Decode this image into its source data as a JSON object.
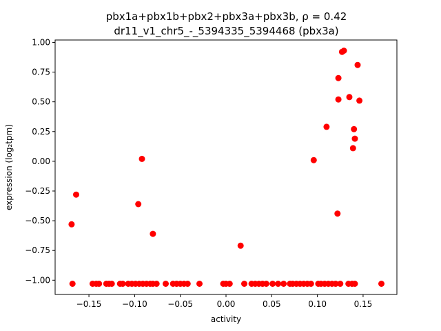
{
  "chart_data": {
    "type": "scatter",
    "title_line1": "pbx1a+pbx1b+pbx2+pbx3a+pbx3b, ρ = 0.42",
    "title_line2": "dr11_v1_chr5_-_5394335_5394468 (pbx3a)",
    "xlabel": "activity",
    "ylabel": "expression (log₂tpm)",
    "xlim": [
      -0.187,
      0.187
    ],
    "ylim": [
      -1.12,
      1.02
    ],
    "xticks": [
      -0.15,
      -0.1,
      -0.05,
      0.0,
      0.05,
      0.1,
      0.15
    ],
    "xtick_labels": [
      "−0.15",
      "−0.10",
      "−0.05",
      "0.00",
      "0.05",
      "0.10",
      "0.15"
    ],
    "yticks": [
      1.0,
      0.75,
      0.5,
      0.25,
      0.0,
      -0.25,
      -0.5,
      -0.75,
      -1.0
    ],
    "ytick_labels": [
      "1.00",
      "0.75",
      "0.50",
      "0.25",
      "0.00",
      "−0.25",
      "−0.50",
      "−0.75",
      "−1.00"
    ],
    "marker_color": "#ff0000",
    "grid": false,
    "series": [
      {
        "points": [
          [
            -0.169,
            -0.53
          ],
          [
            -0.164,
            -0.28
          ],
          [
            -0.096,
            -0.36
          ],
          [
            -0.092,
            0.02
          ],
          [
            -0.08,
            -0.61
          ],
          [
            0.016,
            -0.71
          ],
          [
            0.096,
            0.01
          ],
          [
            0.11,
            0.29
          ],
          [
            0.122,
            -0.44
          ],
          [
            0.123,
            0.7
          ],
          [
            0.123,
            0.52
          ],
          [
            0.127,
            0.92
          ],
          [
            0.129,
            0.93
          ],
          [
            0.135,
            0.54
          ],
          [
            0.139,
            0.11
          ],
          [
            0.14,
            0.27
          ],
          [
            0.141,
            0.19
          ],
          [
            0.144,
            0.81
          ],
          [
            0.146,
            0.51
          ],
          [
            -0.168,
            -1.03
          ],
          [
            -0.146,
            -1.03
          ],
          [
            -0.142,
            -1.03
          ],
          [
            -0.139,
            -1.03
          ],
          [
            -0.131,
            -1.03
          ],
          [
            -0.128,
            -1.03
          ],
          [
            -0.125,
            -1.03
          ],
          [
            -0.116,
            -1.03
          ],
          [
            -0.113,
            -1.03
          ],
          [
            -0.107,
            -1.03
          ],
          [
            -0.103,
            -1.03
          ],
          [
            -0.099,
            -1.03
          ],
          [
            -0.095,
            -1.03
          ],
          [
            -0.091,
            -1.03
          ],
          [
            -0.087,
            -1.03
          ],
          [
            -0.083,
            -1.03
          ],
          [
            -0.08,
            -1.03
          ],
          [
            -0.076,
            -1.03
          ],
          [
            -0.066,
            -1.03
          ],
          [
            -0.058,
            -1.03
          ],
          [
            -0.054,
            -1.03
          ],
          [
            -0.05,
            -1.03
          ],
          [
            -0.046,
            -1.03
          ],
          [
            -0.042,
            -1.03
          ],
          [
            -0.029,
            -1.03
          ],
          [
            -0.003,
            -1.03
          ],
          [
            0.0,
            -1.03
          ],
          [
            0.004,
            -1.03
          ],
          [
            0.02,
            -1.03
          ],
          [
            0.028,
            -1.03
          ],
          [
            0.032,
            -1.03
          ],
          [
            0.036,
            -1.03
          ],
          [
            0.04,
            -1.03
          ],
          [
            0.044,
            -1.03
          ],
          [
            0.051,
            -1.03
          ],
          [
            0.057,
            -1.03
          ],
          [
            0.063,
            -1.03
          ],
          [
            0.07,
            -1.03
          ],
          [
            0.073,
            -1.03
          ],
          [
            0.077,
            -1.03
          ],
          [
            0.081,
            -1.03
          ],
          [
            0.085,
            -1.03
          ],
          [
            0.089,
            -1.03
          ],
          [
            0.093,
            -1.03
          ],
          [
            0.101,
            -1.03
          ],
          [
            0.104,
            -1.03
          ],
          [
            0.108,
            -1.03
          ],
          [
            0.112,
            -1.03
          ],
          [
            0.116,
            -1.03
          ],
          [
            0.12,
            -1.03
          ],
          [
            0.125,
            -1.03
          ],
          [
            0.134,
            -1.03
          ],
          [
            0.138,
            -1.03
          ],
          [
            0.141,
            -1.03
          ],
          [
            0.17,
            -1.03
          ]
        ]
      }
    ]
  }
}
